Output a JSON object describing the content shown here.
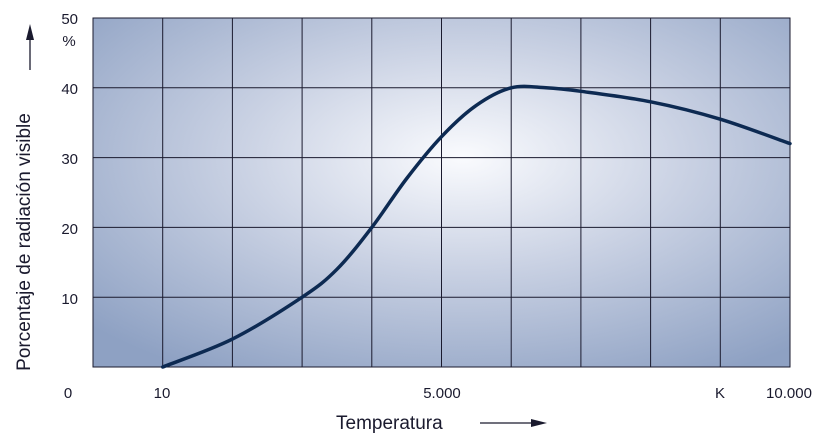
{
  "chart_data": {
    "type": "line",
    "xlabel": "Temperatura",
    "ylabel": "Porcentaje de radiación visible",
    "y_unit": "%",
    "x_unit": "K",
    "xlim": [
      0,
      10000
    ],
    "ylim": [
      0,
      50
    ],
    "x_tick_labels": [
      "0",
      "10",
      "5.000",
      "10.000"
    ],
    "y_tick_labels": [
      "10",
      "20",
      "30",
      "40",
      "50"
    ],
    "grid": true,
    "series": [
      {
        "x": [
          1000,
          2000,
          3000,
          3500,
          4000,
          4500,
          5000,
          5500,
          6000,
          6500,
          7000,
          8000,
          9000,
          10000
        ],
        "values": [
          0,
          4,
          10,
          14,
          20,
          27,
          33,
          37.5,
          40,
          40,
          39.5,
          38,
          35.5,
          32
        ],
        "color": "#0d2a52"
      }
    ]
  }
}
